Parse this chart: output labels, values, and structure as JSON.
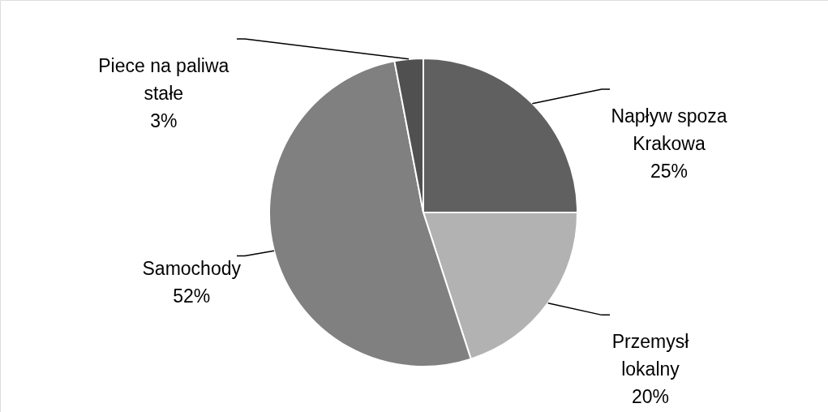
{
  "chart_data": {
    "type": "pie",
    "categories": [
      "Napływ spoza\nKrakowa",
      "Przemysł\nlokalny",
      "Samochody",
      "Piece na paliwa\nstałe"
    ],
    "values": [
      25,
      20,
      52,
      3
    ],
    "colors": [
      "#606060",
      "#b2b2b2",
      "#808080",
      "#505050"
    ],
    "value_labels": [
      "25%",
      "20%",
      "52%",
      "3%"
    ]
  }
}
